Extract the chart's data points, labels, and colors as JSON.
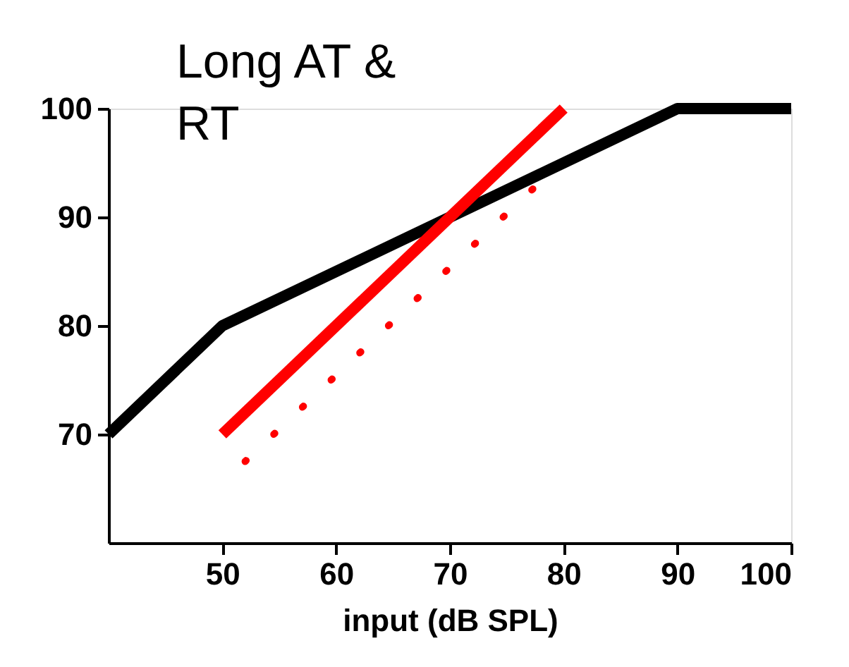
{
  "chart_data": {
    "type": "line",
    "title": "Long AT &\nRT",
    "xlabel": "input (dB SPL)",
    "xlim": [
      40,
      100
    ],
    "xticks": [
      50,
      60,
      70,
      80,
      90,
      100
    ],
    "ylim": [
      60,
      100
    ],
    "yticks": [
      70,
      80,
      90,
      100
    ],
    "grid": false,
    "marker": "none",
    "series": [
      {
        "color": "#000000",
        "x": [
          40,
          50,
          90,
          100
        ],
        "values": [
          70,
          80,
          100,
          100
        ],
        "line_style": "solid"
      },
      {
        "color": "#ff0000",
        "x": [
          50,
          80
        ],
        "values": [
          70,
          100
        ],
        "line_style": "solid"
      },
      {
        "color": "#ff0000",
        "x": [
          52,
          78
        ],
        "values": [
          67.5,
          93.3
        ],
        "line_style": "dotted"
      }
    ]
  }
}
